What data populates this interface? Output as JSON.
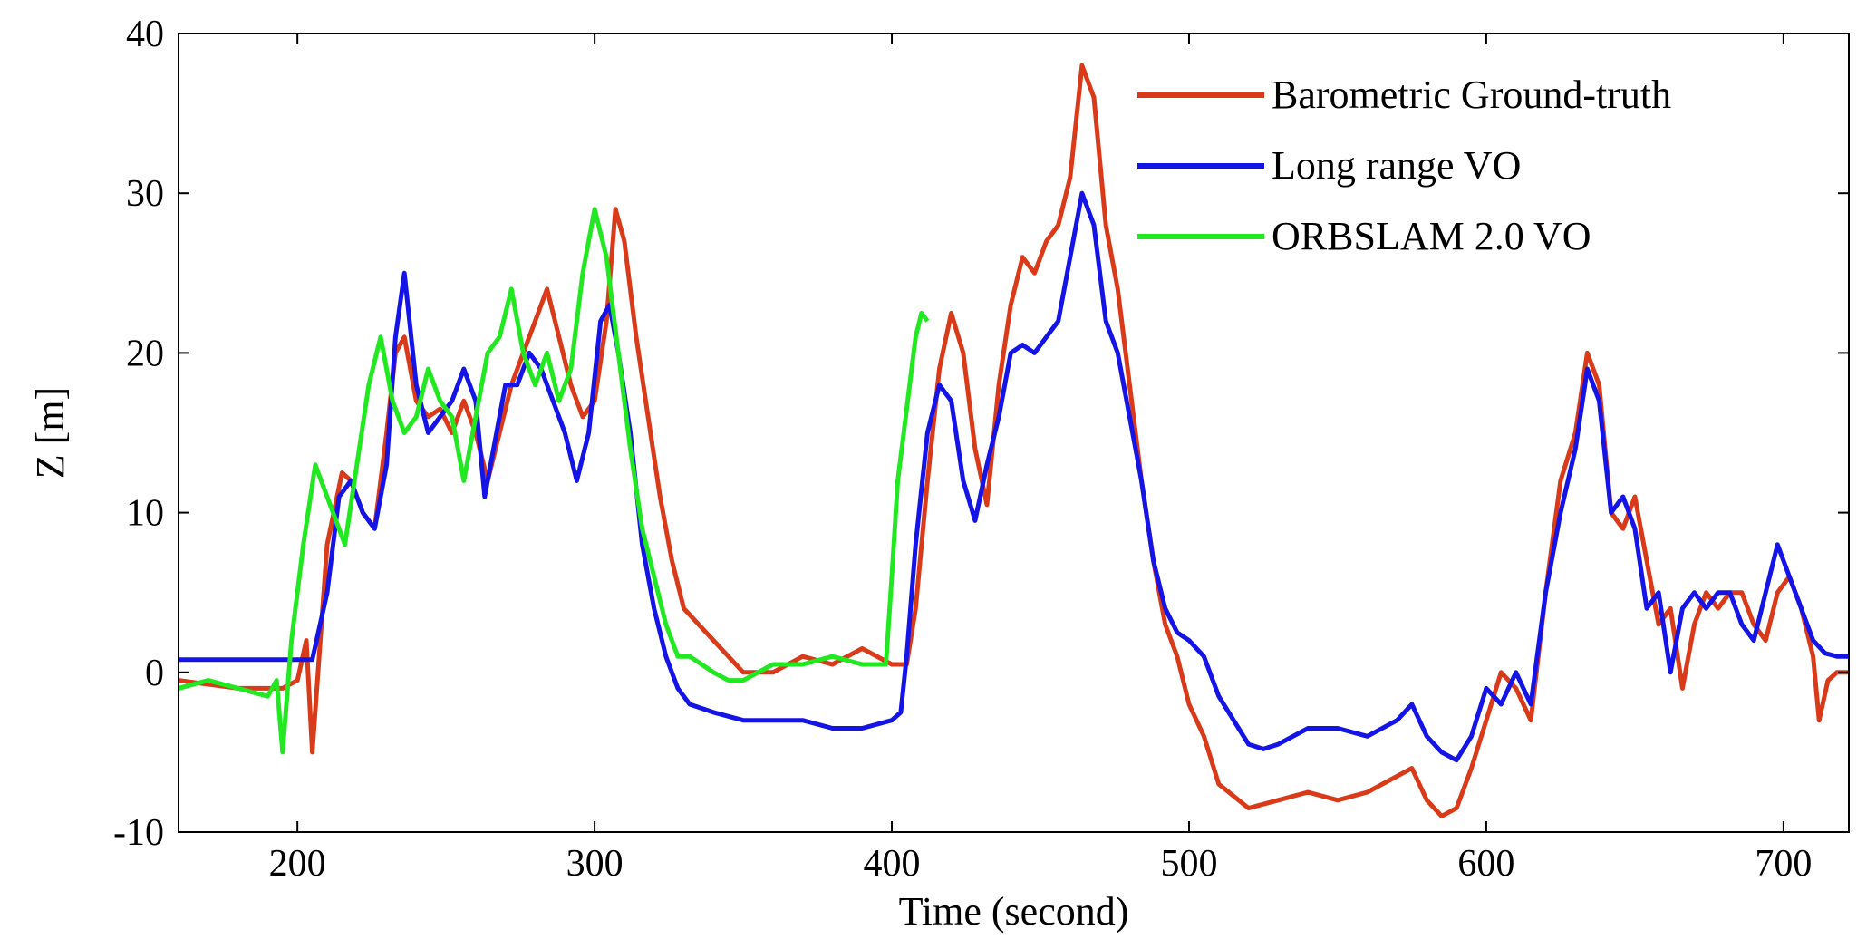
{
  "chart_data": {
    "type": "line",
    "title": "",
    "xlabel": "Time (second)",
    "ylabel": "Z [m]",
    "xlim": [
      160,
      722
    ],
    "ylim": [
      -10,
      40
    ],
    "xticks": [
      200,
      300,
      400,
      500,
      600,
      700
    ],
    "yticks": [
      -10,
      0,
      10,
      20,
      30,
      40
    ],
    "xtick_labels": [
      "200",
      "300",
      "400",
      "500",
      "600",
      "700"
    ],
    "ytick_labels": [
      "-10",
      "0",
      "10",
      "20",
      "30",
      "40"
    ],
    "grid": false,
    "legend_position": "top-right",
    "series": [
      {
        "name": "Barometric Ground-truth",
        "color": "#d93a1a",
        "x": [
          160,
          180,
          195,
          200,
          203,
          205,
          210,
          215,
          218,
          222,
          226,
          230,
          233,
          236,
          240,
          244,
          248,
          252,
          256,
          260,
          264,
          268,
          272,
          276,
          280,
          284,
          288,
          292,
          296,
          300,
          304,
          307,
          310,
          314,
          318,
          322,
          326,
          330,
          335,
          340,
          350,
          360,
          370,
          380,
          390,
          400,
          405,
          408,
          412,
          416,
          420,
          424,
          428,
          432,
          436,
          440,
          444,
          448,
          452,
          456,
          460,
          464,
          468,
          472,
          476,
          480,
          484,
          488,
          492,
          496,
          500,
          505,
          510,
          520,
          530,
          540,
          550,
          560,
          570,
          575,
          580,
          585,
          590,
          595,
          600,
          605,
          610,
          615,
          620,
          625,
          630,
          634,
          638,
          642,
          646,
          650,
          654,
          658,
          662,
          666,
          670,
          674,
          678,
          682,
          686,
          690,
          694,
          698,
          702,
          706,
          710,
          712,
          715,
          718,
          722
        ],
        "y": [
          -0.5,
          -1,
          -1,
          -0.5,
          2,
          -5,
          8,
          12.5,
          12,
          10,
          9,
          15,
          20,
          21,
          17,
          16,
          16.5,
          15,
          17,
          15,
          12,
          15,
          18,
          20,
          22,
          24,
          21,
          18,
          16,
          17,
          22,
          29,
          27,
          21,
          16,
          11,
          7,
          4,
          3,
          2,
          0,
          0,
          1,
          0.5,
          1.5,
          0.5,
          0.5,
          4,
          12,
          19,
          22.5,
          20,
          14,
          10.5,
          18,
          23,
          26,
          25,
          27,
          28,
          31,
          38,
          36,
          28,
          24,
          18,
          12,
          7,
          3,
          1,
          -2,
          -4,
          -7,
          -8.5,
          -8,
          -7.5,
          -8,
          -7.5,
          -6.5,
          -6,
          -8,
          -9,
          -8.5,
          -6,
          -3,
          0,
          -1,
          -3,
          5,
          12,
          15,
          20,
          18,
          10,
          9,
          11,
          7,
          3,
          4,
          -1,
          3,
          5,
          4,
          5,
          5,
          3,
          2,
          5,
          6,
          4,
          1,
          -3,
          -0.5,
          0,
          0
        ]
      },
      {
        "name": "Long range VO",
        "color": "#1414e6",
        "x": [
          160,
          180,
          200,
          205,
          210,
          214,
          218,
          222,
          226,
          230,
          233,
          236,
          240,
          244,
          248,
          252,
          256,
          260,
          263,
          266,
          270,
          274,
          278,
          282,
          286,
          290,
          294,
          298,
          302,
          305,
          308,
          312,
          316,
          320,
          324,
          328,
          332,
          340,
          350,
          360,
          370,
          380,
          390,
          400,
          403,
          405,
          408,
          412,
          416,
          420,
          424,
          428,
          432,
          436,
          440,
          444,
          448,
          452,
          456,
          460,
          464,
          468,
          472,
          476,
          480,
          484,
          488,
          492,
          496,
          500,
          505,
          510,
          515,
          520,
          525,
          530,
          540,
          550,
          560,
          570,
          575,
          580,
          585,
          590,
          595,
          600,
          605,
          610,
          615,
          620,
          625,
          630,
          634,
          638,
          642,
          646,
          650,
          654,
          658,
          662,
          666,
          670,
          674,
          678,
          682,
          686,
          690,
          694,
          698,
          702,
          706,
          710,
          714,
          718,
          722
        ],
        "y": [
          0.8,
          0.8,
          0.8,
          0.8,
          5,
          11,
          12,
          10,
          9,
          13,
          21,
          25,
          18,
          15,
          16,
          17,
          19,
          17,
          11,
          14,
          18,
          18,
          20,
          19,
          17,
          15,
          12,
          15,
          22,
          23,
          20,
          15,
          8,
          4,
          1,
          -1,
          -2,
          -2.5,
          -3,
          -3,
          -3,
          -3.5,
          -3.5,
          -3,
          -2.5,
          1,
          8,
          15,
          18,
          17,
          12,
          9.5,
          13,
          16,
          20,
          20.5,
          20,
          21,
          22,
          26,
          30,
          28,
          22,
          20,
          16,
          12,
          7,
          4,
          2.5,
          2,
          1,
          -1.5,
          -3,
          -4.5,
          -4.8,
          -4.5,
          -3.5,
          -3.5,
          -4,
          -3,
          -2,
          -4,
          -5,
          -5.5,
          -4,
          -1,
          -2,
          0,
          -2,
          5,
          10,
          14,
          19,
          17,
          10,
          11,
          9,
          4,
          5,
          0,
          4,
          5,
          4,
          5,
          5,
          3,
          2,
          5,
          8,
          6,
          4,
          2,
          1.2,
          1,
          1
        ]
      },
      {
        "name": "ORBSLAM 2.0 VO",
        "color": "#22e822",
        "x": [
          160,
          170,
          180,
          190,
          193,
          195,
          198,
          202,
          206,
          208,
          212,
          216,
          220,
          224,
          228,
          232,
          236,
          240,
          244,
          248,
          252,
          256,
          260,
          264,
          268,
          272,
          276,
          280,
          284,
          288,
          292,
          296,
          300,
          304,
          308,
          312,
          316,
          320,
          324,
          328,
          332,
          336,
          340,
          345,
          350,
          360,
          370,
          380,
          390,
          398,
          400,
          402,
          404,
          406,
          408,
          410,
          412
        ],
        "y": [
          -1,
          -0.5,
          -1,
          -1.5,
          -0.5,
          -5,
          2,
          8,
          13,
          12,
          10,
          8,
          13,
          18,
          21,
          17,
          15,
          16,
          19,
          17,
          16,
          12,
          16,
          20,
          21,
          24,
          20,
          18,
          20,
          17,
          19,
          25,
          29,
          26,
          20,
          14,
          9,
          6,
          3,
          1,
          1,
          0.5,
          0,
          -0.5,
          -0.5,
          0.5,
          0.5,
          1,
          0.5,
          0.5,
          6,
          12,
          15,
          18,
          21,
          22.5,
          22
        ]
      }
    ]
  },
  "legend": {
    "items": [
      {
        "label": "Barometric Ground-truth",
        "color": "#d93a1a"
      },
      {
        "label": "Long range VO",
        "color": "#1414e6"
      },
      {
        "label": "ORBSLAM 2.0 VO",
        "color": "#22e822"
      }
    ]
  }
}
